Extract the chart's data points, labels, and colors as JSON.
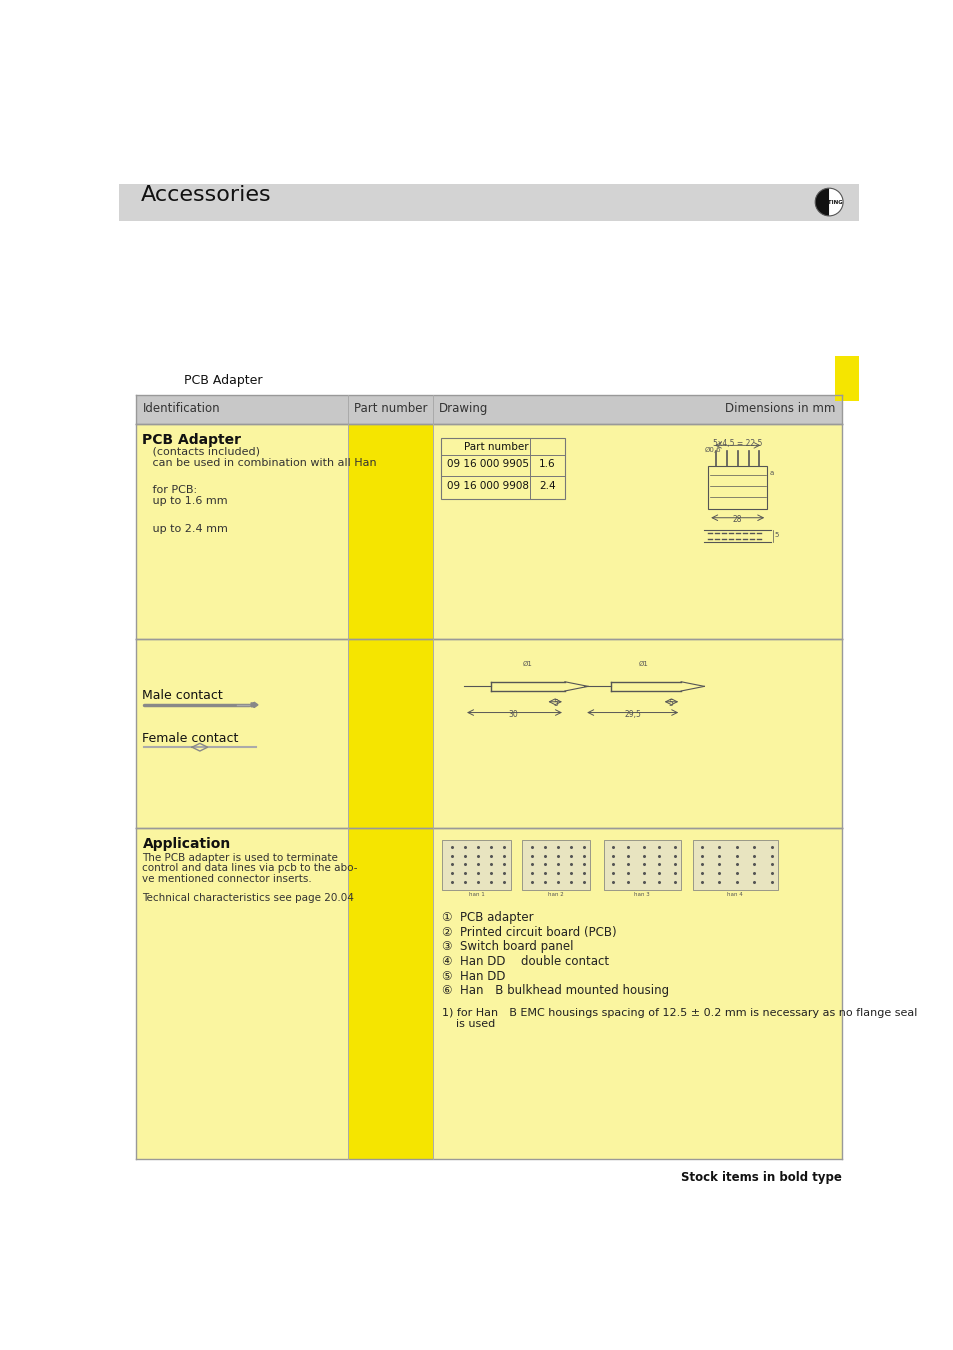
{
  "title": "Accessories",
  "header_bg": "#d3d3d3",
  "page_bg": "#ffffff",
  "yellow_bg": "#f5e500",
  "light_yellow_bg": "#faf5a0",
  "gray_header_bg": "#c8c8c8",
  "table_header": [
    "Identification",
    "Part number",
    "Drawing",
    "Dimensions in mm"
  ],
  "section1_title": "PCB Adapter",
  "section1_sub1": "   (contacts included)",
  "section1_sub2": "   can be used in combination with all Han",
  "section1_sub3": "   for PCB:",
  "section1_sub4": "   up to 1.6 mm",
  "section1_sub5": "   up to 2.4 mm",
  "part_table_header": "Part number",
  "part_rows": [
    [
      "09 16 000 9905",
      "1.6"
    ],
    [
      "09 16 000 9908",
      "2.4"
    ]
  ],
  "section2_label1": "Male contact",
  "section2_label2": "Female contact",
  "section3_title": "Application",
  "section3_text1": "The PCB adapter is used to terminate",
  "section3_text2": "control and data lines via pcb to the abo-",
  "section3_text3": "ve mentioned connector inserts.",
  "section3_text4": "Technical characteristics see page 20.04",
  "legend_items": [
    "①  PCB adapter",
    "②  Printed circuit board (PCB)",
    "③  Switch board panel",
    "④  Han DD  double contact",
    "⑤  Han DD",
    "⑥  Han B bulkhead mounted housing"
  ],
  "footnote1": "1) for Han B EMC housings spacing of 12.5 ± 0.2 mm is necessary as no flange seal",
  "footnote2": "    is used",
  "stock_note": "Stock items in bold type",
  "pcb_label": "   PCB Adapter",
  "yellow_square_color": "#f5e500",
  "border_color": "#b0b0b0",
  "dim_color": "#555555",
  "text_color": "#111111",
  "sub_text_color": "#333333"
}
